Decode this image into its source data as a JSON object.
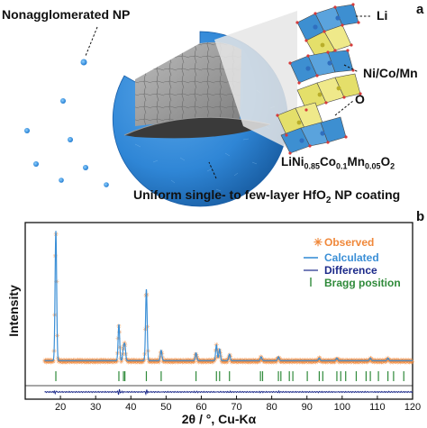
{
  "panel_a": {
    "letter": "a",
    "label_nonagglomerated": "Nonagglomerated NP",
    "label_li": "Li",
    "label_tm": "Ni/Co/Mn",
    "label_o": "O",
    "formula": {
      "p1": "LiNi",
      "s1": "0.85",
      "p2": "Co",
      "s2": "0.1",
      "p3": "Mn",
      "s3": "0.05",
      "p4": "O",
      "s4": "2"
    },
    "coating": {
      "pre": "Uniform single- to few-layer HfO",
      "sub": "2",
      "post": " NP coating"
    },
    "colors": {
      "sphere": "#2f86d6",
      "sphere_dark": "#1b5fa8",
      "core": "#9a9a9a",
      "li_octa": "#3d8fd1",
      "tm_octa": "#e4df6a",
      "o_atom": "#d63b3b"
    }
  },
  "panel_b": {
    "letter": "b"
  },
  "chart_data": {
    "type": "line",
    "xlabel": "2θ / °, Cu-Kα",
    "ylabel": "Intensity",
    "xlim": [
      10,
      120
    ],
    "xticks": [
      20,
      30,
      40,
      50,
      60,
      70,
      80,
      90,
      100,
      110,
      120
    ],
    "legend": [
      "Observed",
      "Calculated",
      "Difference",
      "Bragg position"
    ],
    "legend_position": "top-right",
    "colors": {
      "observed": "#f0883a",
      "calculated": "#3b8fd6",
      "difference": "#1c2a8a",
      "bragg": "#2f8a3a"
    },
    "peaks": [
      {
        "x": 18.7,
        "y": 100
      },
      {
        "x": 36.6,
        "y": 28
      },
      {
        "x": 37.9,
        "y": 9
      },
      {
        "x": 38.3,
        "y": 11
      },
      {
        "x": 44.4,
        "y": 55
      },
      {
        "x": 48.6,
        "y": 8
      },
      {
        "x": 58.5,
        "y": 6
      },
      {
        "x": 64.3,
        "y": 12
      },
      {
        "x": 65.2,
        "y": 9
      },
      {
        "x": 68.0,
        "y": 5
      },
      {
        "x": 77.0,
        "y": 3
      },
      {
        "x": 81.9,
        "y": 3
      },
      {
        "x": 93.5,
        "y": 2
      },
      {
        "x": 98.5,
        "y": 2
      },
      {
        "x": 108.0,
        "y": 2
      },
      {
        "x": 113.0,
        "y": 2
      }
    ],
    "bragg_positions": [
      18.7,
      36.6,
      37.9,
      38.3,
      44.4,
      48.6,
      58.5,
      64.3,
      65.2,
      68.0,
      76.8,
      77.4,
      81.9,
      82.6,
      85.0,
      86.0,
      90.1,
      93.5,
      94.5,
      98.5,
      99.6,
      101.0,
      104.0,
      106.8,
      108.0,
      110.3,
      113.0,
      114.6,
      117.5
    ]
  }
}
